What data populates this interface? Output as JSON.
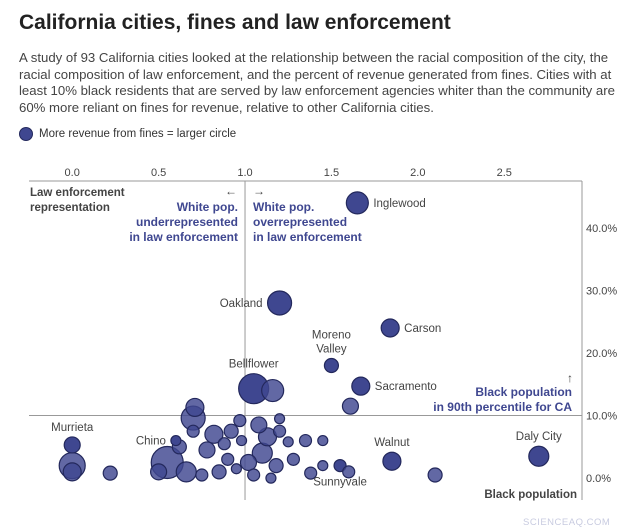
{
  "title": "California cities, fines and law enforcement",
  "subtitle": "A study of 93 California cities looked at the relationship between the racial composition of the city, the racial composition of law enforcement, and the percent of revenue generated from fines. Cities with at least 10% black residents that are served by law enforcement agencies whiter than the community are 60% more reliant on fines for revenue, relative to other California cities.",
  "legend": {
    "label": "More revenue from fines = larger circle"
  },
  "watermark": "SCIENCEAQ.COM",
  "colors": {
    "fill": "#3f4790",
    "stroke": "#23285c",
    "accent_text": "#3f4790",
    "axis": "#999999"
  },
  "chart_data": {
    "type": "scatter",
    "title": "California cities, fines and law enforcement",
    "xlabel": "Law enforcement representation",
    "ylabel": "Black population",
    "xlim": [
      -0.25,
      2.95
    ],
    "ylim": [
      -0.035,
      0.475
    ],
    "x_axis_position": "top",
    "y_axis_position": "right",
    "x_ticks": [
      0.0,
      0.5,
      1.0,
      1.5,
      2.0,
      2.5
    ],
    "x_tick_labels": [
      "0.0",
      "0.5",
      "1.0",
      "1.5",
      "2.0",
      "2.5"
    ],
    "y_ticks": [
      0.0,
      0.1,
      0.2,
      0.3,
      0.4
    ],
    "y_tick_labels": [
      "0.0%",
      "10.0%",
      "20.0%",
      "30.0%",
      "40.0%"
    ],
    "reference_lines": [
      {
        "axis": "x",
        "value": 1.0
      },
      {
        "axis": "y",
        "value": 0.1
      }
    ],
    "size_meaning": "More revenue from fines = larger circle",
    "annotations": {
      "left_arrow": "←",
      "right_arrow": "→",
      "up_arrow": "↑",
      "left_region": [
        "White pop.",
        "underrepresented",
        "in law enforcement"
      ],
      "right_region": [
        "White pop.",
        "overrepresented",
        "in law enforcement"
      ],
      "threshold": [
        "Black population",
        "in 90th percentile for CA"
      ]
    },
    "points": [
      {
        "name": "Inglewood",
        "x": 1.65,
        "y": 0.44,
        "r": 11
      },
      {
        "name": "Oakland",
        "x": 1.2,
        "y": 0.28,
        "r": 12
      },
      {
        "name": "Carson",
        "x": 1.84,
        "y": 0.24,
        "r": 9
      },
      {
        "name": "Moreno Valley",
        "x": 1.5,
        "y": 0.18,
        "r": 7
      },
      {
        "name": "Bellflower",
        "x": 1.05,
        "y": 0.143,
        "r": 15
      },
      {
        "name": "Sacramento",
        "x": 1.67,
        "y": 0.147,
        "r": 9
      },
      {
        "name": "Murrieta",
        "x": 0.0,
        "y": 0.053,
        "r": 8
      },
      {
        "name": "Chino",
        "x": 0.6,
        "y": 0.06,
        "r": 5
      },
      {
        "name": "Walnut",
        "x": 1.85,
        "y": 0.027,
        "r": 9
      },
      {
        "name": "Sunnyvale",
        "x": 1.55,
        "y": 0.02,
        "r": 6
      },
      {
        "name": "Daly City",
        "x": 2.7,
        "y": 0.035,
        "r": 10
      },
      {
        "name": "",
        "x": 1.16,
        "y": 0.14,
        "r": 11
      },
      {
        "name": "",
        "x": 1.61,
        "y": 0.115,
        "r": 8
      },
      {
        "name": "",
        "x": 0.71,
        "y": 0.113,
        "r": 9
      },
      {
        "name": "",
        "x": 0.7,
        "y": 0.096,
        "r": 12
      },
      {
        "name": "",
        "x": 0.82,
        "y": 0.07,
        "r": 9
      },
      {
        "name": "",
        "x": 0.92,
        "y": 0.075,
        "r": 7
      },
      {
        "name": "",
        "x": 0.97,
        "y": 0.092,
        "r": 6
      },
      {
        "name": "",
        "x": 1.08,
        "y": 0.085,
        "r": 8
      },
      {
        "name": "",
        "x": 1.13,
        "y": 0.066,
        "r": 9
      },
      {
        "name": "",
        "x": 1.2,
        "y": 0.075,
        "r": 6
      },
      {
        "name": "",
        "x": 1.25,
        "y": 0.058,
        "r": 5
      },
      {
        "name": "",
        "x": 1.35,
        "y": 0.06,
        "r": 6
      },
      {
        "name": "",
        "x": 1.45,
        "y": 0.06,
        "r": 5
      },
      {
        "name": "",
        "x": 1.28,
        "y": 0.03,
        "r": 6
      },
      {
        "name": "",
        "x": 1.18,
        "y": 0.02,
        "r": 7
      },
      {
        "name": "",
        "x": 1.1,
        "y": 0.04,
        "r": 10
      },
      {
        "name": "",
        "x": 1.02,
        "y": 0.025,
        "r": 8
      },
      {
        "name": "",
        "x": 0.9,
        "y": 0.03,
        "r": 6
      },
      {
        "name": "",
        "x": 0.95,
        "y": 0.015,
        "r": 5
      },
      {
        "name": "",
        "x": 0.85,
        "y": 0.01,
        "r": 7
      },
      {
        "name": "",
        "x": 0.75,
        "y": 0.005,
        "r": 6
      },
      {
        "name": "",
        "x": 0.66,
        "y": 0.01,
        "r": 10
      },
      {
        "name": "",
        "x": 0.55,
        "y": 0.025,
        "r": 16
      },
      {
        "name": "",
        "x": 0.5,
        "y": 0.01,
        "r": 8
      },
      {
        "name": "",
        "x": 0.0,
        "y": 0.02,
        "r": 13
      },
      {
        "name": "",
        "x": 0.0,
        "y": 0.01,
        "r": 9
      },
      {
        "name": "",
        "x": 0.22,
        "y": 0.008,
        "r": 7
      },
      {
        "name": "",
        "x": 0.62,
        "y": 0.05,
        "r": 7
      },
      {
        "name": "",
        "x": 0.78,
        "y": 0.045,
        "r": 8
      },
      {
        "name": "",
        "x": 0.88,
        "y": 0.055,
        "r": 6
      },
      {
        "name": "",
        "x": 0.98,
        "y": 0.06,
        "r": 5
      },
      {
        "name": "",
        "x": 1.38,
        "y": 0.008,
        "r": 6
      },
      {
        "name": "",
        "x": 1.45,
        "y": 0.02,
        "r": 5
      },
      {
        "name": "",
        "x": 1.6,
        "y": 0.01,
        "r": 6
      },
      {
        "name": "",
        "x": 2.1,
        "y": 0.005,
        "r": 7
      },
      {
        "name": "",
        "x": 1.05,
        "y": 0.005,
        "r": 6
      },
      {
        "name": "",
        "x": 1.15,
        "y": 0.0,
        "r": 5
      },
      {
        "name": "",
        "x": 0.7,
        "y": 0.075,
        "r": 6
      },
      {
        "name": "",
        "x": 1.2,
        "y": 0.095,
        "r": 5
      }
    ]
  }
}
